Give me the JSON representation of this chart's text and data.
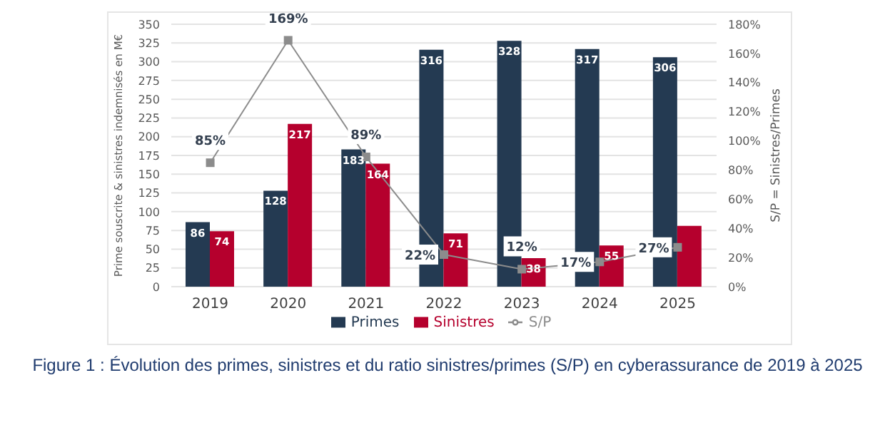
{
  "chart_data": {
    "type": "bar",
    "title": "Figure 1 : Évolution des primes, sinistres et du ratio sinistres/primes (S/P) en cyberassurance de 2019 à 2025",
    "ylabel": "Prime souscrite & sinistres indemnisés en M€",
    "y2label": "S/P = Sinistres/Primes",
    "categories": [
      "2019",
      "2020",
      "2021",
      "2022",
      "2023",
      "2024",
      "2025"
    ],
    "series": [
      {
        "name": "Primes",
        "color": "#243a52",
        "values": [
          86,
          128,
          183,
          316,
          328,
          317,
          306
        ],
        "value_labels": [
          "86",
          "128",
          "183",
          "316",
          "328",
          "317",
          "306"
        ]
      },
      {
        "name": "Sinistres",
        "color": "#b5002d",
        "values": [
          74,
          217,
          164,
          71,
          38,
          55,
          81
        ],
        "value_labels": [
          "74",
          "217",
          "164",
          "71",
          "38",
          "55",
          null
        ]
      },
      {
        "name": "S/P",
        "type": "line",
        "axis": "y2",
        "color": "#8c8c8c",
        "marker": "square",
        "values": [
          85,
          169,
          89,
          22,
          12,
          17,
          27
        ],
        "value_labels": [
          "85%",
          "169%",
          "89%",
          "22%",
          "12%",
          "17%",
          "27%"
        ]
      }
    ],
    "ylim": [
      0,
      350
    ],
    "yticks": [
      0,
      25,
      50,
      75,
      100,
      125,
      150,
      175,
      200,
      225,
      250,
      275,
      300,
      325,
      350
    ],
    "y2lim": [
      0,
      180
    ],
    "y2ticks": [
      {
        "value": 0,
        "label": "0%"
      },
      {
        "value": 20,
        "label": "20%"
      },
      {
        "value": 40,
        "label": "40%"
      },
      {
        "value": 60,
        "label": "60%"
      },
      {
        "value": 80,
        "label": "80%"
      },
      {
        "value": 100,
        "label": "100%"
      },
      {
        "value": 120,
        "label": "120%"
      },
      {
        "value": 140,
        "label": "140%"
      },
      {
        "value": 160,
        "label": "160%"
      },
      {
        "value": 180,
        "label": "180%"
      }
    ],
    "grid": "y",
    "legend": "bottom"
  }
}
